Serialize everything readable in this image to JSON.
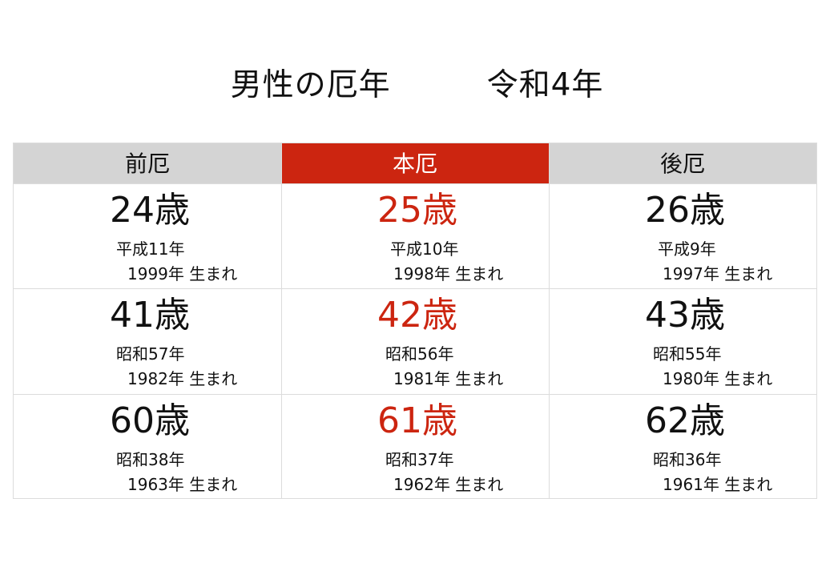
{
  "title": "男性の厄年　　　令和4年",
  "headers": [
    "前厄",
    "本厄",
    "後厄"
  ],
  "colors": {
    "header_gray": "#d4d4d4",
    "header_highlight": "#cc2510",
    "age_highlight": "#cc2510"
  },
  "rows": [
    [
      {
        "age": "24歳",
        "era": "平成11年",
        "born": "1999年 生まれ"
      },
      {
        "age": "25歳",
        "era": "平成10年",
        "born": "1998年 生まれ"
      },
      {
        "age": "26歳",
        "era": "平成9年",
        "born": "1997年 生まれ"
      }
    ],
    [
      {
        "age": "41歳",
        "era": "昭和57年",
        "born": "1982年 生まれ"
      },
      {
        "age": "42歳",
        "era": "昭和56年",
        "born": "1981年 生まれ"
      },
      {
        "age": "43歳",
        "era": "昭和55年",
        "born": "1980年 生まれ"
      }
    ],
    [
      {
        "age": "60歳",
        "era": "昭和38年",
        "born": "1963年 生まれ"
      },
      {
        "age": "61歳",
        "era": "昭和37年",
        "born": "1962年 生まれ"
      },
      {
        "age": "62歳",
        "era": "昭和36年",
        "born": "1961年 生まれ"
      }
    ]
  ]
}
